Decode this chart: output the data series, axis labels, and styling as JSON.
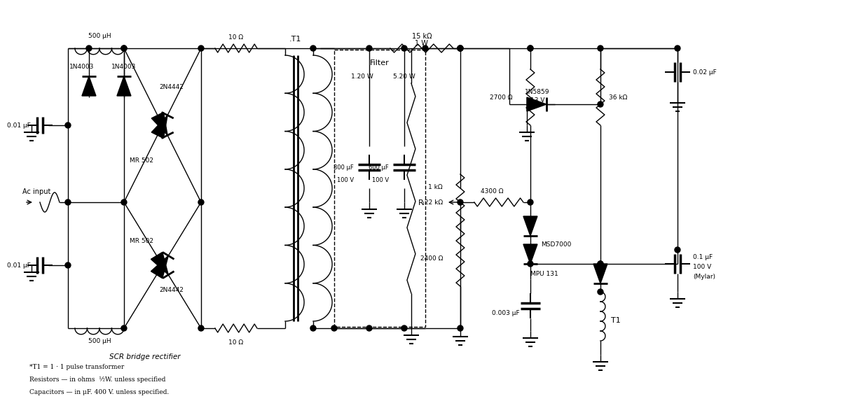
{
  "bg_color": "#ffffff",
  "fig_width": 12.0,
  "fig_height": 5.64,
  "notes": [
    "*T1 = 1 · 1 pulse transformer",
    "Resistors — in ohms  ½W. unless specified",
    "Capacitors — in μF. 400 V. unless specified."
  ],
  "labels": {
    "1N4003_L": "1N4003",
    "1N4003_R": "1N4003",
    "500uH_top": "500 μH",
    "500uH_bot": "500 μH",
    "2N4442_top": "2N4442",
    "2N4442_bot": "2N4442",
    "MR502_top": "MR 502",
    "MR502_bot": "MR 502",
    "10ohm_top": "10 Ω",
    "10ohm_bot": "10 Ω",
    "T1_label": ".T1",
    "filter_label": "Filter",
    "filter_1w": "1.20 W",
    "filter_2w": "5.20 W",
    "cap800": "800 μF",
    "cap800v": "100 V",
    "cap600": "600 μF",
    "cap600v": "100 V",
    "RL": "Rₗ",
    "2400ohm": "2400 Ω",
    "22kohm": "22 kΩ",
    "2700ohm": "2700 Ω",
    "36kohm": "36 kΩ",
    "1N5859": "1N5859",
    "13V": "13 V",
    "002uF": "0.02 μF",
    "MSD7000": "MSD7000",
    "01uF": "0.1 μF",
    "100V": "100 V",
    "Mylar": "(Mylar)",
    "MPU131": "MPU 131",
    "1kohm": "1 kΩ",
    "4300ohm": "4300 Ω",
    "0003uF": "0.003 μF",
    "T1_bot": "T1",
    "15kohm": "15 kΩ",
    "1W": "1 W",
    "ac_input": "Ac input",
    "001uF_top": "0.01 μF",
    "001uF_bot": "0.01 μF",
    "SCR": "SCR bridge rectifier"
  }
}
